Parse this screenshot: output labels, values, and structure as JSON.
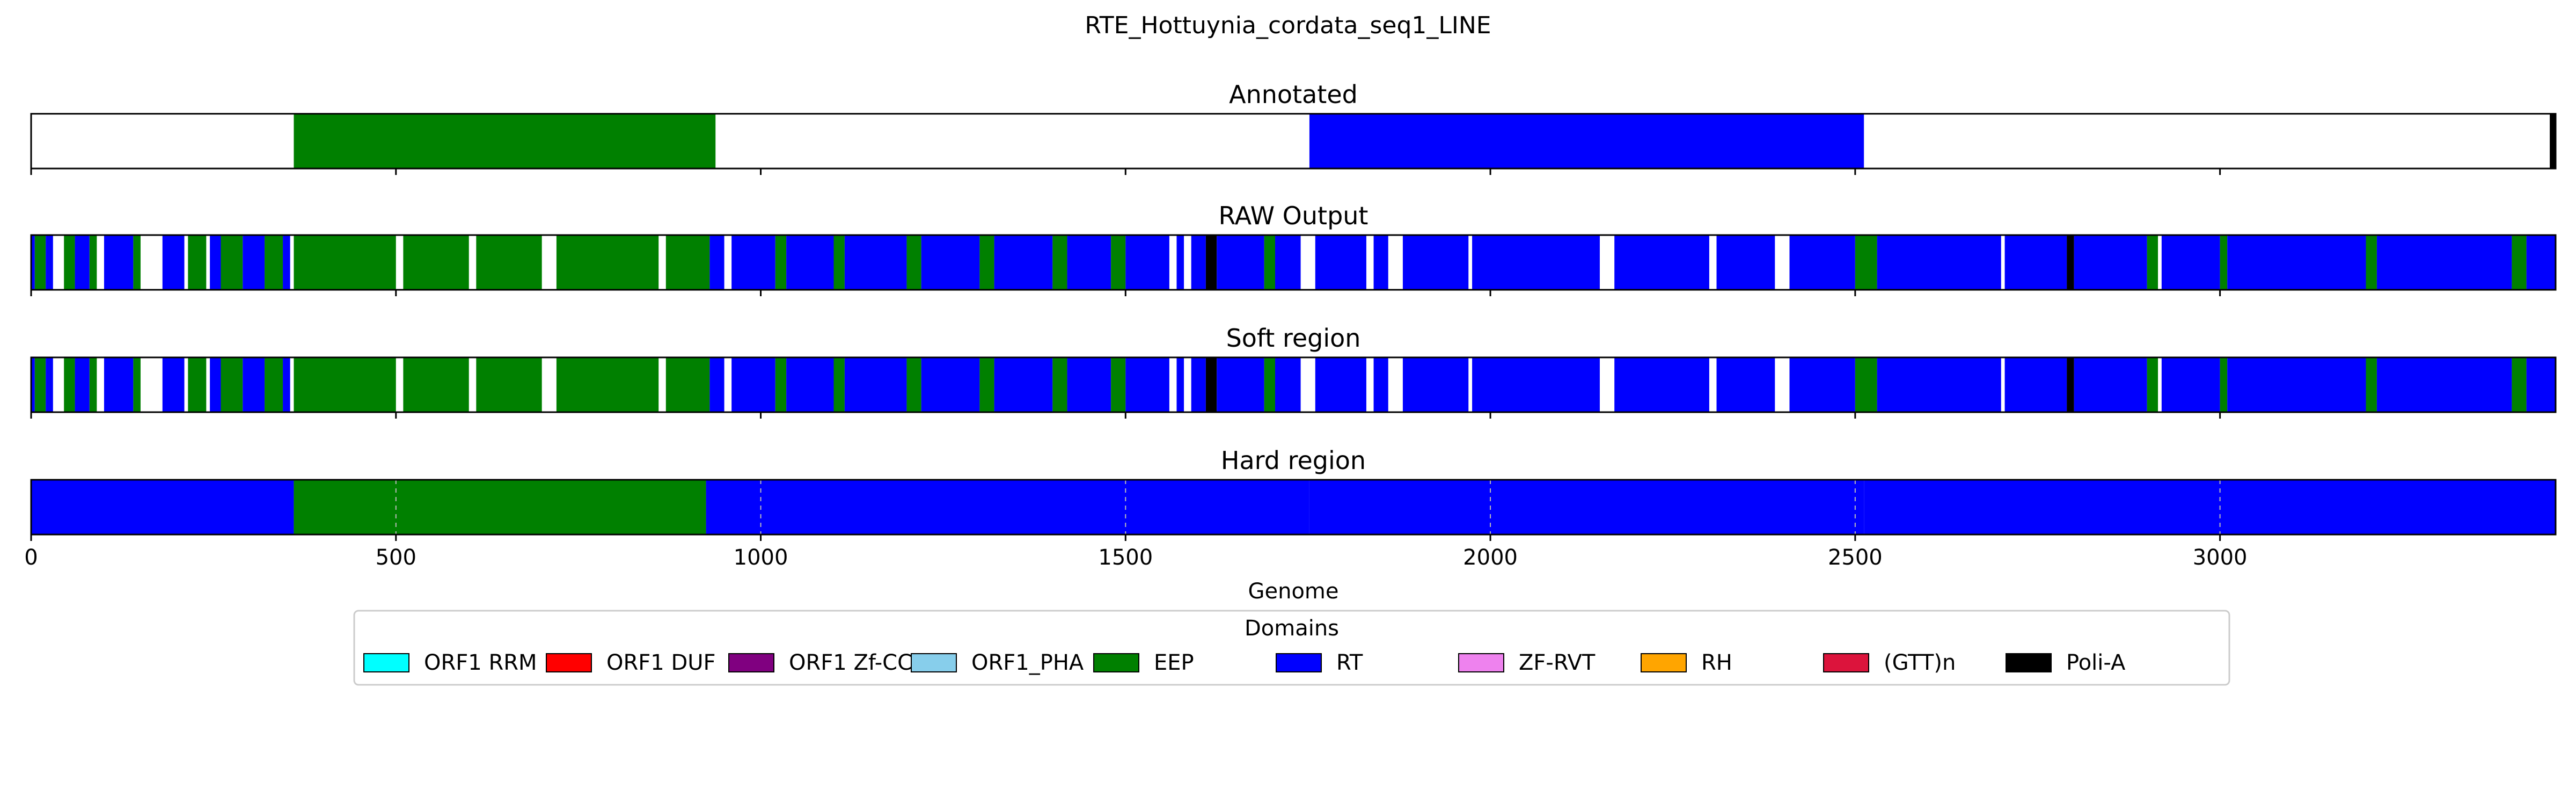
{
  "chart_data": {
    "type": "genome_track",
    "title": "RTE_Hottuynia_cordata_seq1_LINE",
    "xlabel": "Genome",
    "xlim": [
      0,
      3460
    ],
    "xticks": [
      0,
      500,
      1000,
      1500,
      2000,
      2500,
      3000
    ],
    "xtick_labels": [
      "0",
      "500",
      "1000",
      "1500",
      "2000",
      "2500",
      "3000"
    ],
    "colors": {
      "ORF1 RRM": "#00ffff",
      "ORF1 DUF": "#ff0000",
      "ORF1 Zf-CCHC": "#800080",
      "ORF1_PHA": "#87ceeb",
      "EEP": "#008000",
      "RT": "#0000ff",
      "ZF-RVT": "#ee82ee",
      "RH": "#ffa500",
      "(GTT)n": "#dc143c",
      "Poli-A": "#000000"
    },
    "tracks": [
      {
        "title": "Annotated",
        "segments": [
          {
            "start": 360,
            "end": 938,
            "domain": "EEP"
          },
          {
            "start": 1752,
            "end": 2512,
            "domain": "RT"
          },
          {
            "start": 3452,
            "end": 3460,
            "domain": "Poli-A"
          }
        ]
      },
      {
        "title": "RAW Output",
        "segments": [
          {
            "start": 0,
            "end": 5,
            "domain": "RT"
          },
          {
            "start": 5,
            "end": 20,
            "domain": "EEP"
          },
          {
            "start": 20,
            "end": 30,
            "domain": "RT"
          },
          {
            "start": 45,
            "end": 60,
            "domain": "EEP"
          },
          {
            "start": 60,
            "end": 80,
            "domain": "RT"
          },
          {
            "start": 80,
            "end": 90,
            "domain": "EEP"
          },
          {
            "start": 100,
            "end": 140,
            "domain": "RT"
          },
          {
            "start": 140,
            "end": 150,
            "domain": "EEP"
          },
          {
            "start": 180,
            "end": 210,
            "domain": "RT"
          },
          {
            "start": 215,
            "end": 240,
            "domain": "EEP"
          },
          {
            "start": 245,
            "end": 260,
            "domain": "RT"
          },
          {
            "start": 260,
            "end": 290,
            "domain": "EEP"
          },
          {
            "start": 290,
            "end": 320,
            "domain": "RT"
          },
          {
            "start": 320,
            "end": 345,
            "domain": "EEP"
          },
          {
            "start": 345,
            "end": 355,
            "domain": "RT"
          },
          {
            "start": 360,
            "end": 500,
            "domain": "EEP"
          },
          {
            "start": 510,
            "end": 600,
            "domain": "EEP"
          },
          {
            "start": 610,
            "end": 700,
            "domain": "EEP"
          },
          {
            "start": 720,
            "end": 860,
            "domain": "EEP"
          },
          {
            "start": 870,
            "end": 930,
            "domain": "EEP"
          },
          {
            "start": 930,
            "end": 950,
            "domain": "RT"
          },
          {
            "start": 960,
            "end": 1020,
            "domain": "RT"
          },
          {
            "start": 1020,
            "end": 1035,
            "domain": "EEP"
          },
          {
            "start": 1035,
            "end": 1100,
            "domain": "RT"
          },
          {
            "start": 1100,
            "end": 1115,
            "domain": "EEP"
          },
          {
            "start": 1115,
            "end": 1200,
            "domain": "RT"
          },
          {
            "start": 1200,
            "end": 1220,
            "domain": "EEP"
          },
          {
            "start": 1220,
            "end": 1300,
            "domain": "RT"
          },
          {
            "start": 1300,
            "end": 1320,
            "domain": "EEP"
          },
          {
            "start": 1320,
            "end": 1400,
            "domain": "RT"
          },
          {
            "start": 1400,
            "end": 1420,
            "domain": "EEP"
          },
          {
            "start": 1420,
            "end": 1480,
            "domain": "RT"
          },
          {
            "start": 1480,
            "end": 1500,
            "domain": "EEP"
          },
          {
            "start": 1500,
            "end": 1560,
            "domain": "RT"
          },
          {
            "start": 1570,
            "end": 1580,
            "domain": "RT"
          },
          {
            "start": 1590,
            "end": 1610,
            "domain": "RT"
          },
          {
            "start": 1610,
            "end": 1625,
            "domain": "Poli-A"
          },
          {
            "start": 1625,
            "end": 1690,
            "domain": "RT"
          },
          {
            "start": 1690,
            "end": 1705,
            "domain": "EEP"
          },
          {
            "start": 1705,
            "end": 1740,
            "domain": "RT"
          },
          {
            "start": 1760,
            "end": 1830,
            "domain": "RT"
          },
          {
            "start": 1840,
            "end": 1860,
            "domain": "RT"
          },
          {
            "start": 1880,
            "end": 1970,
            "domain": "RT"
          },
          {
            "start": 1975,
            "end": 2150,
            "domain": "RT"
          },
          {
            "start": 2170,
            "end": 2300,
            "domain": "RT"
          },
          {
            "start": 2310,
            "end": 2390,
            "domain": "RT"
          },
          {
            "start": 2410,
            "end": 2500,
            "domain": "RT"
          },
          {
            "start": 2500,
            "end": 2530,
            "domain": "EEP"
          },
          {
            "start": 2530,
            "end": 2700,
            "domain": "RT"
          },
          {
            "start": 2705,
            "end": 2790,
            "domain": "RT"
          },
          {
            "start": 2790,
            "end": 2800,
            "domain": "Poli-A"
          },
          {
            "start": 2800,
            "end": 2900,
            "domain": "RT"
          },
          {
            "start": 2900,
            "end": 2915,
            "domain": "EEP"
          },
          {
            "start": 2920,
            "end": 3000,
            "domain": "RT"
          },
          {
            "start": 3000,
            "end": 3010,
            "domain": "EEP"
          },
          {
            "start": 3010,
            "end": 3200,
            "domain": "RT"
          },
          {
            "start": 3200,
            "end": 3215,
            "domain": "EEP"
          },
          {
            "start": 3215,
            "end": 3400,
            "domain": "RT"
          },
          {
            "start": 3400,
            "end": 3420,
            "domain": "EEP"
          },
          {
            "start": 3420,
            "end": 3460,
            "domain": "RT"
          }
        ]
      },
      {
        "title": "Soft region",
        "segments": [
          {
            "start": 0,
            "end": 5,
            "domain": "RT"
          },
          {
            "start": 5,
            "end": 20,
            "domain": "EEP"
          },
          {
            "start": 20,
            "end": 30,
            "domain": "RT"
          },
          {
            "start": 45,
            "end": 60,
            "domain": "EEP"
          },
          {
            "start": 60,
            "end": 80,
            "domain": "RT"
          },
          {
            "start": 80,
            "end": 90,
            "domain": "EEP"
          },
          {
            "start": 100,
            "end": 140,
            "domain": "RT"
          },
          {
            "start": 140,
            "end": 150,
            "domain": "EEP"
          },
          {
            "start": 180,
            "end": 210,
            "domain": "RT"
          },
          {
            "start": 215,
            "end": 240,
            "domain": "EEP"
          },
          {
            "start": 245,
            "end": 260,
            "domain": "RT"
          },
          {
            "start": 260,
            "end": 290,
            "domain": "EEP"
          },
          {
            "start": 290,
            "end": 320,
            "domain": "RT"
          },
          {
            "start": 320,
            "end": 345,
            "domain": "EEP"
          },
          {
            "start": 345,
            "end": 355,
            "domain": "RT"
          },
          {
            "start": 360,
            "end": 500,
            "domain": "EEP"
          },
          {
            "start": 510,
            "end": 600,
            "domain": "EEP"
          },
          {
            "start": 610,
            "end": 700,
            "domain": "EEP"
          },
          {
            "start": 720,
            "end": 860,
            "domain": "EEP"
          },
          {
            "start": 870,
            "end": 930,
            "domain": "EEP"
          },
          {
            "start": 930,
            "end": 950,
            "domain": "RT"
          },
          {
            "start": 960,
            "end": 1020,
            "domain": "RT"
          },
          {
            "start": 1020,
            "end": 1035,
            "domain": "EEP"
          },
          {
            "start": 1035,
            "end": 1100,
            "domain": "RT"
          },
          {
            "start": 1100,
            "end": 1115,
            "domain": "EEP"
          },
          {
            "start": 1115,
            "end": 1200,
            "domain": "RT"
          },
          {
            "start": 1200,
            "end": 1220,
            "domain": "EEP"
          },
          {
            "start": 1220,
            "end": 1300,
            "domain": "RT"
          },
          {
            "start": 1300,
            "end": 1320,
            "domain": "EEP"
          },
          {
            "start": 1320,
            "end": 1400,
            "domain": "RT"
          },
          {
            "start": 1400,
            "end": 1420,
            "domain": "EEP"
          },
          {
            "start": 1420,
            "end": 1480,
            "domain": "RT"
          },
          {
            "start": 1480,
            "end": 1500,
            "domain": "EEP"
          },
          {
            "start": 1500,
            "end": 1560,
            "domain": "RT"
          },
          {
            "start": 1570,
            "end": 1580,
            "domain": "RT"
          },
          {
            "start": 1590,
            "end": 1610,
            "domain": "RT"
          },
          {
            "start": 1610,
            "end": 1625,
            "domain": "Poli-A"
          },
          {
            "start": 1625,
            "end": 1690,
            "domain": "RT"
          },
          {
            "start": 1690,
            "end": 1705,
            "domain": "EEP"
          },
          {
            "start": 1705,
            "end": 1740,
            "domain": "RT"
          },
          {
            "start": 1760,
            "end": 1830,
            "domain": "RT"
          },
          {
            "start": 1840,
            "end": 1860,
            "domain": "RT"
          },
          {
            "start": 1880,
            "end": 1970,
            "domain": "RT"
          },
          {
            "start": 1975,
            "end": 2150,
            "domain": "RT"
          },
          {
            "start": 2170,
            "end": 2300,
            "domain": "RT"
          },
          {
            "start": 2310,
            "end": 2390,
            "domain": "RT"
          },
          {
            "start": 2410,
            "end": 2500,
            "domain": "RT"
          },
          {
            "start": 2500,
            "end": 2530,
            "domain": "EEP"
          },
          {
            "start": 2530,
            "end": 2700,
            "domain": "RT"
          },
          {
            "start": 2705,
            "end": 2790,
            "domain": "RT"
          },
          {
            "start": 2790,
            "end": 2800,
            "domain": "Poli-A"
          },
          {
            "start": 2800,
            "end": 2900,
            "domain": "RT"
          },
          {
            "start": 2900,
            "end": 2915,
            "domain": "EEP"
          },
          {
            "start": 2920,
            "end": 3000,
            "domain": "RT"
          },
          {
            "start": 3000,
            "end": 3010,
            "domain": "EEP"
          },
          {
            "start": 3010,
            "end": 3200,
            "domain": "RT"
          },
          {
            "start": 3200,
            "end": 3215,
            "domain": "EEP"
          },
          {
            "start": 3215,
            "end": 3400,
            "domain": "RT"
          },
          {
            "start": 3400,
            "end": 3420,
            "domain": "EEP"
          },
          {
            "start": 3420,
            "end": 3460,
            "domain": "RT"
          }
        ]
      },
      {
        "title": "Hard region",
        "segments": [
          {
            "start": 0,
            "end": 360,
            "domain": "RT"
          },
          {
            "start": 360,
            "end": 925,
            "domain": "EEP"
          },
          {
            "start": 925,
            "end": 1752,
            "domain": "RT"
          },
          {
            "start": 1752,
            "end": 2512,
            "domain": "RT"
          },
          {
            "start": 2512,
            "end": 3460,
            "domain": "RT"
          }
        ]
      }
    ],
    "legend_title": "Domains",
    "legend_position": "bottom-center",
    "legend_items": [
      "ORF1 RRM",
      "ORF1 DUF",
      "ORF1 Zf-CCHC",
      "ORF1_PHA",
      "EEP",
      "RT",
      "ZF-RVT",
      "RH",
      "(GTT)n",
      "Poli-A"
    ]
  }
}
